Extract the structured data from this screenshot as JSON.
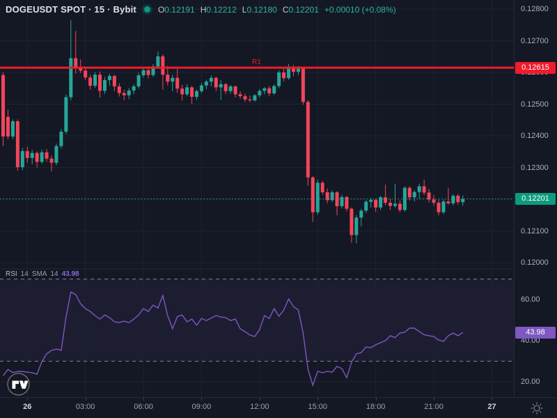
{
  "header": {
    "title": "DOGEUSDT SPOT · 15 · Bybit",
    "status_dot": "data-feed-connected",
    "ohlc": {
      "o_label": "O",
      "o": "0.12191",
      "h_label": "H",
      "h": "0.12212",
      "l_label": "L",
      "l": "0.12180",
      "c_label": "C",
      "c": "0.12201",
      "change": "+0.00010 (+0.08%)"
    }
  },
  "r1_label": "R1",
  "price_axis": {
    "labels": [
      "0.12800",
      "0.12700",
      "0.12600",
      "0.12500",
      "0.12400",
      "0.12300",
      "0.12200",
      "0.12100",
      "0.12000"
    ],
    "r1_badge": "0.12615",
    "last_badge": "0.12201"
  },
  "time_axis": {
    "ticks": [
      {
        "label": "26",
        "index": 5,
        "major": true
      },
      {
        "label": "03:00",
        "index": 17,
        "major": false
      },
      {
        "label": "06:00",
        "index": 29,
        "major": false
      },
      {
        "label": "09:00",
        "index": 41,
        "major": false
      },
      {
        "label": "12:00",
        "index": 53,
        "major": false
      },
      {
        "label": "15:00",
        "index": 65,
        "major": false
      },
      {
        "label": "18:00",
        "index": 77,
        "major": false
      },
      {
        "label": "21:00",
        "index": 89,
        "major": false
      },
      {
        "label": "27",
        "index": 101,
        "major": true
      }
    ]
  },
  "rsi_pane": {
    "name": "RSI",
    "length": "14",
    "sma_label": "SMA",
    "sma_length": "14",
    "value": "43.98",
    "badge": "43.98",
    "levels": [
      "60.00",
      "40.00",
      "20.00"
    ]
  },
  "colors": {
    "background": "#141824",
    "grid": "#1e2330",
    "candle_up": "#26a69a",
    "candle_down": "#f3455a",
    "r1_line": "#ef1c2b",
    "last_price": "#0d9b80",
    "rsi_line": "#7e57c2",
    "rsi_band_fill": "rgba(126,87,194,0.09)",
    "axis_text": "#aeb1bb"
  },
  "chart_data": {
    "type": "candlestick",
    "symbol": "DOGEUSDT",
    "market": "SPOT",
    "interval": "15",
    "exchange": "Bybit",
    "price_scale": 100000,
    "price_axis_ticks": [
      0.128,
      0.127,
      0.126,
      0.125,
      0.124,
      0.123,
      0.122,
      0.121,
      0.12
    ],
    "r1_level": 0.12615,
    "last_price": 0.12201,
    "last_candle": {
      "open": 0.12191,
      "high": 0.12212,
      "low": 0.1218,
      "close": 0.12201,
      "change": "+0.00010",
      "change_pct": "+0.08%"
    },
    "candles": [
      [
        12592,
        12600,
        12368,
        12398
      ],
      [
        12460,
        12482,
        12390,
        12398
      ],
      [
        12398,
        12452,
        12390,
        12446
      ],
      [
        12446,
        12452,
        12290,
        12301
      ],
      [
        12301,
        12362,
        12292,
        12352
      ],
      [
        12352,
        12366,
        12315,
        12330
      ],
      [
        12330,
        12356,
        12310,
        12346
      ],
      [
        12346,
        12351,
        12300,
        12318
      ],
      [
        12318,
        12356,
        12312,
        12348
      ],
      [
        12348,
        12358,
        12318,
        12328
      ],
      [
        12328,
        12338,
        12288,
        12315
      ],
      [
        12315,
        12376,
        12308,
        12368
      ],
      [
        12368,
        12422,
        12360,
        12413
      ],
      [
        12413,
        12530,
        12405,
        12522
      ],
      [
        12522,
        12765,
        12512,
        12645
      ],
      [
        12645,
        12731,
        12596,
        12612
      ],
      [
        12612,
        12641,
        12598,
        12606
      ],
      [
        12606,
        12619,
        12576,
        12584
      ],
      [
        12584,
        12593,
        12546,
        12558
      ],
      [
        12558,
        12601,
        12552,
        12593
      ],
      [
        12593,
        12603,
        12521,
        12542
      ],
      [
        12542,
        12586,
        12532,
        12576
      ],
      [
        12576,
        12596,
        12558,
        12589
      ],
      [
        12589,
        12593,
        12541,
        12556
      ],
      [
        12556,
        12566,
        12524,
        12535
      ],
      [
        12535,
        12546,
        12512,
        12528
      ],
      [
        12528,
        12551,
        12516,
        12543
      ],
      [
        12543,
        12563,
        12531,
        12556
      ],
      [
        12556,
        12599,
        12549,
        12591
      ],
      [
        12591,
        12616,
        12583,
        12607
      ],
      [
        12607,
        12619,
        12581,
        12592
      ],
      [
        12592,
        12626,
        12586,
        12619
      ],
      [
        12619,
        12666,
        12613,
        12651
      ],
      [
        12651,
        12657,
        12546,
        12593
      ],
      [
        12593,
        12621,
        12559,
        12571
      ],
      [
        12571,
        12593,
        12541,
        12583
      ],
      [
        12583,
        12611,
        12536,
        12549
      ],
      [
        12549,
        12561,
        12511,
        12531
      ],
      [
        12531,
        12563,
        12525,
        12553
      ],
      [
        12553,
        12557,
        12501,
        12523
      ],
      [
        12523,
        12547,
        12513,
        12541
      ],
      [
        12541,
        12567,
        12535,
        12559
      ],
      [
        12559,
        12577,
        12547,
        12571
      ],
      [
        12571,
        12591,
        12557,
        12583
      ],
      [
        12583,
        12587,
        12541,
        12553
      ],
      [
        12553,
        12577,
        12513,
        12563
      ],
      [
        12563,
        12567,
        12531,
        12541
      ],
      [
        12541,
        12561,
        12533,
        12556
      ],
      [
        12556,
        12559,
        12521,
        12531
      ],
      [
        12531,
        12541,
        12517,
        12525
      ],
      [
        12525,
        12533,
        12507,
        12515
      ],
      [
        12515,
        12527,
        12506,
        12512
      ],
      [
        12512,
        12531,
        12508,
        12528
      ],
      [
        12528,
        12547,
        12521,
        12542
      ],
      [
        12542,
        12554,
        12531,
        12550
      ],
      [
        12550,
        12557,
        12525,
        12534
      ],
      [
        12534,
        12562,
        12529,
        12557
      ],
      [
        12557,
        12607,
        12551,
        12600
      ],
      [
        12600,
        12617,
        12572,
        12582
      ],
      [
        12582,
        12627,
        12577,
        12617
      ],
      [
        12617,
        12624,
        12589,
        12602
      ],
      [
        12602,
        12620,
        12592,
        12612
      ],
      [
        12612,
        12615,
        12498,
        12507
      ],
      [
        12507,
        12512,
        12243,
        12269
      ],
      [
        12269,
        12273,
        12129,
        12159
      ],
      [
        12159,
        12262,
        12151,
        12252
      ],
      [
        12252,
        12258,
        12214,
        12222
      ],
      [
        12222,
        12234,
        12187,
        12197
      ],
      [
        12197,
        12228,
        12191,
        12222
      ],
      [
        12222,
        12226,
        12149,
        12178
      ],
      [
        12178,
        12214,
        12171,
        12207
      ],
      [
        12207,
        12210,
        12162,
        12170
      ],
      [
        12170,
        12174,
        12063,
        12087
      ],
      [
        12087,
        12150,
        12061,
        12142
      ],
      [
        12142,
        12170,
        12114,
        12164
      ],
      [
        12164,
        12198,
        12157,
        12192
      ],
      [
        12192,
        12204,
        12174,
        12198
      ],
      [
        12198,
        12202,
        12160,
        12174
      ],
      [
        12174,
        12211,
        12166,
        12206
      ],
      [
        12206,
        12246,
        12181,
        12189
      ],
      [
        12189,
        12201,
        12166,
        12179
      ],
      [
        12179,
        12249,
        12173,
        12186
      ],
      [
        12186,
        12196,
        12159,
        12166
      ],
      [
        12166,
        12241,
        12161,
        12236
      ],
      [
        12236,
        12241,
        12196,
        12206
      ],
      [
        12206,
        12229,
        12193,
        12223
      ],
      [
        12223,
        12249,
        12201,
        12241
      ],
      [
        12241,
        12262,
        12213,
        12221
      ],
      [
        12221,
        12233,
        12189,
        12199
      ],
      [
        12199,
        12213,
        12179,
        12189
      ],
      [
        12189,
        12199,
        12149,
        12159
      ],
      [
        12159,
        12199,
        12153,
        12193
      ],
      [
        12193,
        12236,
        12183,
        12187
      ],
      [
        12187,
        12216,
        12181,
        12211
      ],
      [
        12211,
        12217,
        12183,
        12191
      ],
      [
        12191,
        12212,
        12180,
        12201
      ]
    ],
    "rsi": {
      "length": 14,
      "sma_length": 14,
      "value": 43.98,
      "overbought": 70,
      "oversold": 30,
      "axis_ticks": [
        60,
        40,
        20
      ],
      "values": [
        23,
        26,
        24.5,
        25,
        25,
        24.7,
        24.4,
        23.7,
        29.8,
        33.6,
        35.3,
        35.9,
        35.3,
        51.5,
        63.7,
        62.4,
        58,
        55.6,
        54.2,
        52.2,
        50.5,
        52.5,
        51.2,
        49.2,
        48.8,
        49.5,
        48.8,
        50.5,
        52.5,
        55.6,
        54.2,
        57.3,
        55.9,
        62,
        52.2,
        45.8,
        51.7,
        52.5,
        49.2,
        50.5,
        47.5,
        50.8,
        49.8,
        51,
        52.2,
        51.5,
        51.2,
        49.8,
        50.5,
        45.8,
        44.4,
        42.7,
        42,
        45.4,
        52.2,
        50.8,
        55.6,
        51.9,
        54.9,
        60.3,
        56.6,
        54.9,
        43.7,
        26.1,
        18.3,
        25.1,
        24.4,
        25.1,
        24.7,
        27.5,
        26.4,
        22,
        29.5,
        33.6,
        34.2,
        36.9,
        36.6,
        38,
        39,
        40,
        42.4,
        41.5,
        43.7,
        44.1,
        46.1,
        46.1,
        44.4,
        42.9,
        42.4,
        42,
        40.3,
        39.7,
        42.4,
        43.7,
        42.4,
        43.98
      ]
    }
  }
}
